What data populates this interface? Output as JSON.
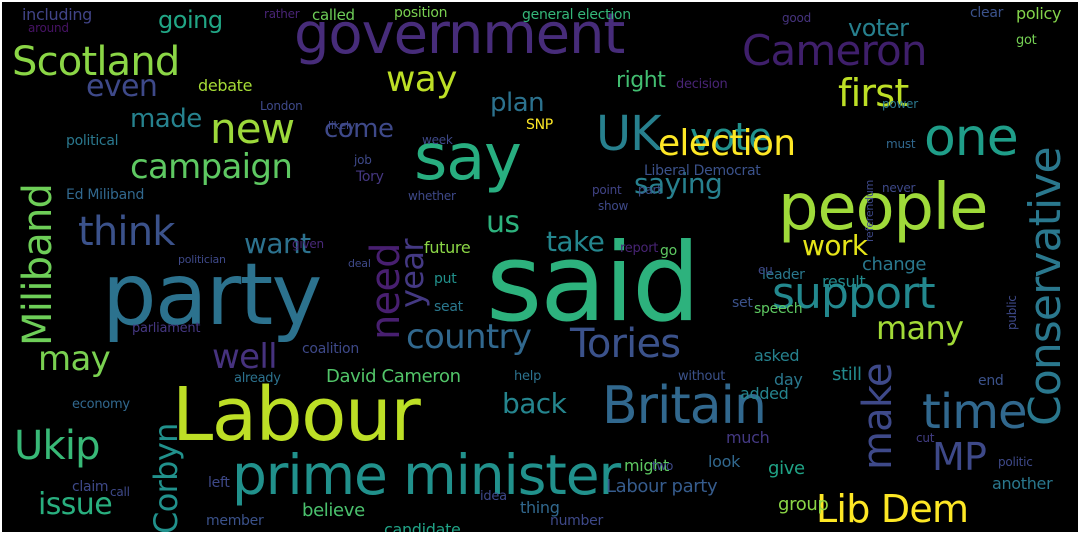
{
  "wordcloud": {
    "words": [
      {
        "text": "said",
        "color": "#2db27d"
      },
      {
        "text": "party",
        "color": "#2c728e"
      },
      {
        "text": "Labour",
        "color": "#bddf26"
      },
      {
        "text": "government",
        "color": "#472c7a"
      },
      {
        "text": "prime minister",
        "color": "#21918c"
      },
      {
        "text": "people",
        "color": "#9fda3a"
      },
      {
        "text": "say",
        "color": "#28ae80"
      },
      {
        "text": "Cameron",
        "color": "#3f1f6b"
      },
      {
        "text": "one",
        "color": "#1f9e89"
      },
      {
        "text": "Britain",
        "color": "#31688e"
      },
      {
        "text": "time",
        "color": "#31688e"
      },
      {
        "text": "Scotland",
        "color": "#8bd646"
      },
      {
        "text": "new",
        "color": "#9dd93b"
      },
      {
        "text": "UK",
        "color": "#27808e"
      },
      {
        "text": "vote",
        "color": "#21918c"
      },
      {
        "text": "support",
        "color": "#23888e"
      },
      {
        "text": "Conservative",
        "color": "#2a788e"
      },
      {
        "text": "Tories",
        "color": "#3b528b"
      },
      {
        "text": "Lib Dem",
        "color": "#fde725"
      },
      {
        "text": "think",
        "color": "#3b528b"
      },
      {
        "text": "campaign",
        "color": "#5ec962"
      },
      {
        "text": "Miliband",
        "color": "#6ece58"
      },
      {
        "text": "need",
        "color": "#481f70"
      },
      {
        "text": "year",
        "color": "#443983"
      },
      {
        "text": "Ukip",
        "color": "#38b977"
      },
      {
        "text": "Corbyn",
        "color": "#21918c"
      },
      {
        "text": "make",
        "color": "#3e4989"
      },
      {
        "text": "MP",
        "color": "#3e4989"
      },
      {
        "text": "election",
        "color": "#fde725"
      },
      {
        "text": "saying",
        "color": "#27808e"
      },
      {
        "text": "first",
        "color": "#bddf26"
      },
      {
        "text": "way",
        "color": "#bddf26"
      },
      {
        "text": "country",
        "color": "#31688e"
      },
      {
        "text": "many",
        "color": "#a2da37"
      },
      {
        "text": "well",
        "color": "#46327e"
      },
      {
        "text": "may",
        "color": "#7ad151"
      },
      {
        "text": "issue",
        "color": "#29af7f"
      },
      {
        "text": "even",
        "color": "#3e4989"
      },
      {
        "text": "made",
        "color": "#26828e"
      },
      {
        "text": "us",
        "color": "#2db27d"
      },
      {
        "text": "want",
        "color": "#2c728e"
      },
      {
        "text": "take",
        "color": "#24868e"
      },
      {
        "text": "work",
        "color": "#e5e419"
      },
      {
        "text": "plan",
        "color": "#2c728e"
      },
      {
        "text": "come",
        "color": "#3e4989"
      },
      {
        "text": "back",
        "color": "#25858e"
      },
      {
        "text": "right",
        "color": "#42be71"
      },
      {
        "text": "voter",
        "color": "#27808e"
      },
      {
        "text": "going",
        "color": "#21a685"
      },
      {
        "text": "change",
        "color": "#2a788e"
      },
      {
        "text": "David Cameron",
        "color": "#52c569"
      },
      {
        "text": "Labour party",
        "color": "#365c8d"
      },
      {
        "text": "believe",
        "color": "#4ac16d"
      },
      {
        "text": "candidate",
        "color": "#20a386"
      },
      {
        "text": "much",
        "color": "#443983"
      },
      {
        "text": "still",
        "color": "#238a8d"
      },
      {
        "text": "give",
        "color": "#20a386"
      },
      {
        "text": "look",
        "color": "#31688e"
      },
      {
        "text": "might",
        "color": "#5ec962"
      },
      {
        "text": "member",
        "color": "#3b528b"
      },
      {
        "text": "group",
        "color": "#8bd646"
      },
      {
        "text": "number",
        "color": "#3e4989"
      },
      {
        "text": "thing",
        "color": "#31688e"
      },
      {
        "text": "including",
        "color": "#414487"
      },
      {
        "text": "called",
        "color": "#6ece58"
      },
      {
        "text": "position",
        "color": "#7ad151"
      },
      {
        "text": "general election",
        "color": "#35b779"
      },
      {
        "text": "clear",
        "color": "#3b528b"
      },
      {
        "text": "policy",
        "color": "#84d44b"
      },
      {
        "text": "debate",
        "color": "#a5db36"
      },
      {
        "text": "political",
        "color": "#2a788e"
      },
      {
        "text": "Ed Miliband",
        "color": "#31688e"
      },
      {
        "text": "SNP",
        "color": "#fde725"
      },
      {
        "text": "Tory",
        "color": "#453781"
      },
      {
        "text": "Liberal Democrat",
        "color": "#3b528b"
      },
      {
        "text": "future",
        "color": "#8bd646"
      },
      {
        "text": "put",
        "color": "#21918c"
      },
      {
        "text": "seat",
        "color": "#2a788e"
      },
      {
        "text": "leader",
        "color": "#2a788e"
      },
      {
        "text": "result",
        "color": "#238a8d"
      },
      {
        "text": "set",
        "color": "#3b528b"
      },
      {
        "text": "speech",
        "color": "#5ec962"
      },
      {
        "text": "asked",
        "color": "#26828e"
      },
      {
        "text": "added",
        "color": "#25848e"
      },
      {
        "text": "day",
        "color": "#2a788e"
      },
      {
        "text": "end",
        "color": "#3b528b"
      },
      {
        "text": "coalition",
        "color": "#3e4989"
      },
      {
        "text": "parliament",
        "color": "#453781"
      },
      {
        "text": "already",
        "color": "#2c728e"
      },
      {
        "text": "economy",
        "color": "#31688e"
      },
      {
        "text": "help",
        "color": "#2c728e"
      },
      {
        "text": "without",
        "color": "#3b528b"
      },
      {
        "text": "left",
        "color": "#3e4989"
      },
      {
        "text": "claim",
        "color": "#3e4989"
      },
      {
        "text": "call",
        "color": "#3e4989"
      },
      {
        "text": "another",
        "color": "#2a788e"
      },
      {
        "text": "idea",
        "color": "#3e4989"
      },
      {
        "text": "report",
        "color": "#482475"
      },
      {
        "text": "decision",
        "color": "#482475"
      },
      {
        "text": "got",
        "color": "#75d054"
      },
      {
        "text": "good",
        "color": "#46337e"
      },
      {
        "text": "rather",
        "color": "#482475"
      },
      {
        "text": "around",
        "color": "#471365"
      },
      {
        "text": "must",
        "color": "#31688e"
      },
      {
        "text": "point",
        "color": "#414487"
      },
      {
        "text": "part",
        "color": "#3b528b"
      },
      {
        "text": "job",
        "color": "#3e4989"
      },
      {
        "text": "whether",
        "color": "#3e4989"
      },
      {
        "text": "go",
        "color": "#5ec962"
      },
      {
        "text": "given",
        "color": "#482878"
      },
      {
        "text": "cut",
        "color": "#433e85"
      },
      {
        "text": "never",
        "color": "#3e4989"
      },
      {
        "text": "public",
        "color": "#3e4989"
      },
      {
        "text": "power",
        "color": "#2a788e"
      },
      {
        "text": "London",
        "color": "#3e4989"
      },
      {
        "text": "week",
        "color": "#3e4989"
      },
      {
        "text": "likely",
        "color": "#3e4989"
      },
      {
        "text": "politician",
        "color": "#3e4989"
      },
      {
        "text": "deal",
        "color": "#3e4989"
      },
      {
        "text": "two",
        "color": "#3e4989"
      },
      {
        "text": "eu",
        "color": "#3e4989"
      },
      {
        "text": "politic",
        "color": "#3e4989"
      },
      {
        "text": "referendum",
        "color": "#3e4989"
      },
      {
        "text": "show",
        "color": "#3e4989"
      }
    ]
  }
}
